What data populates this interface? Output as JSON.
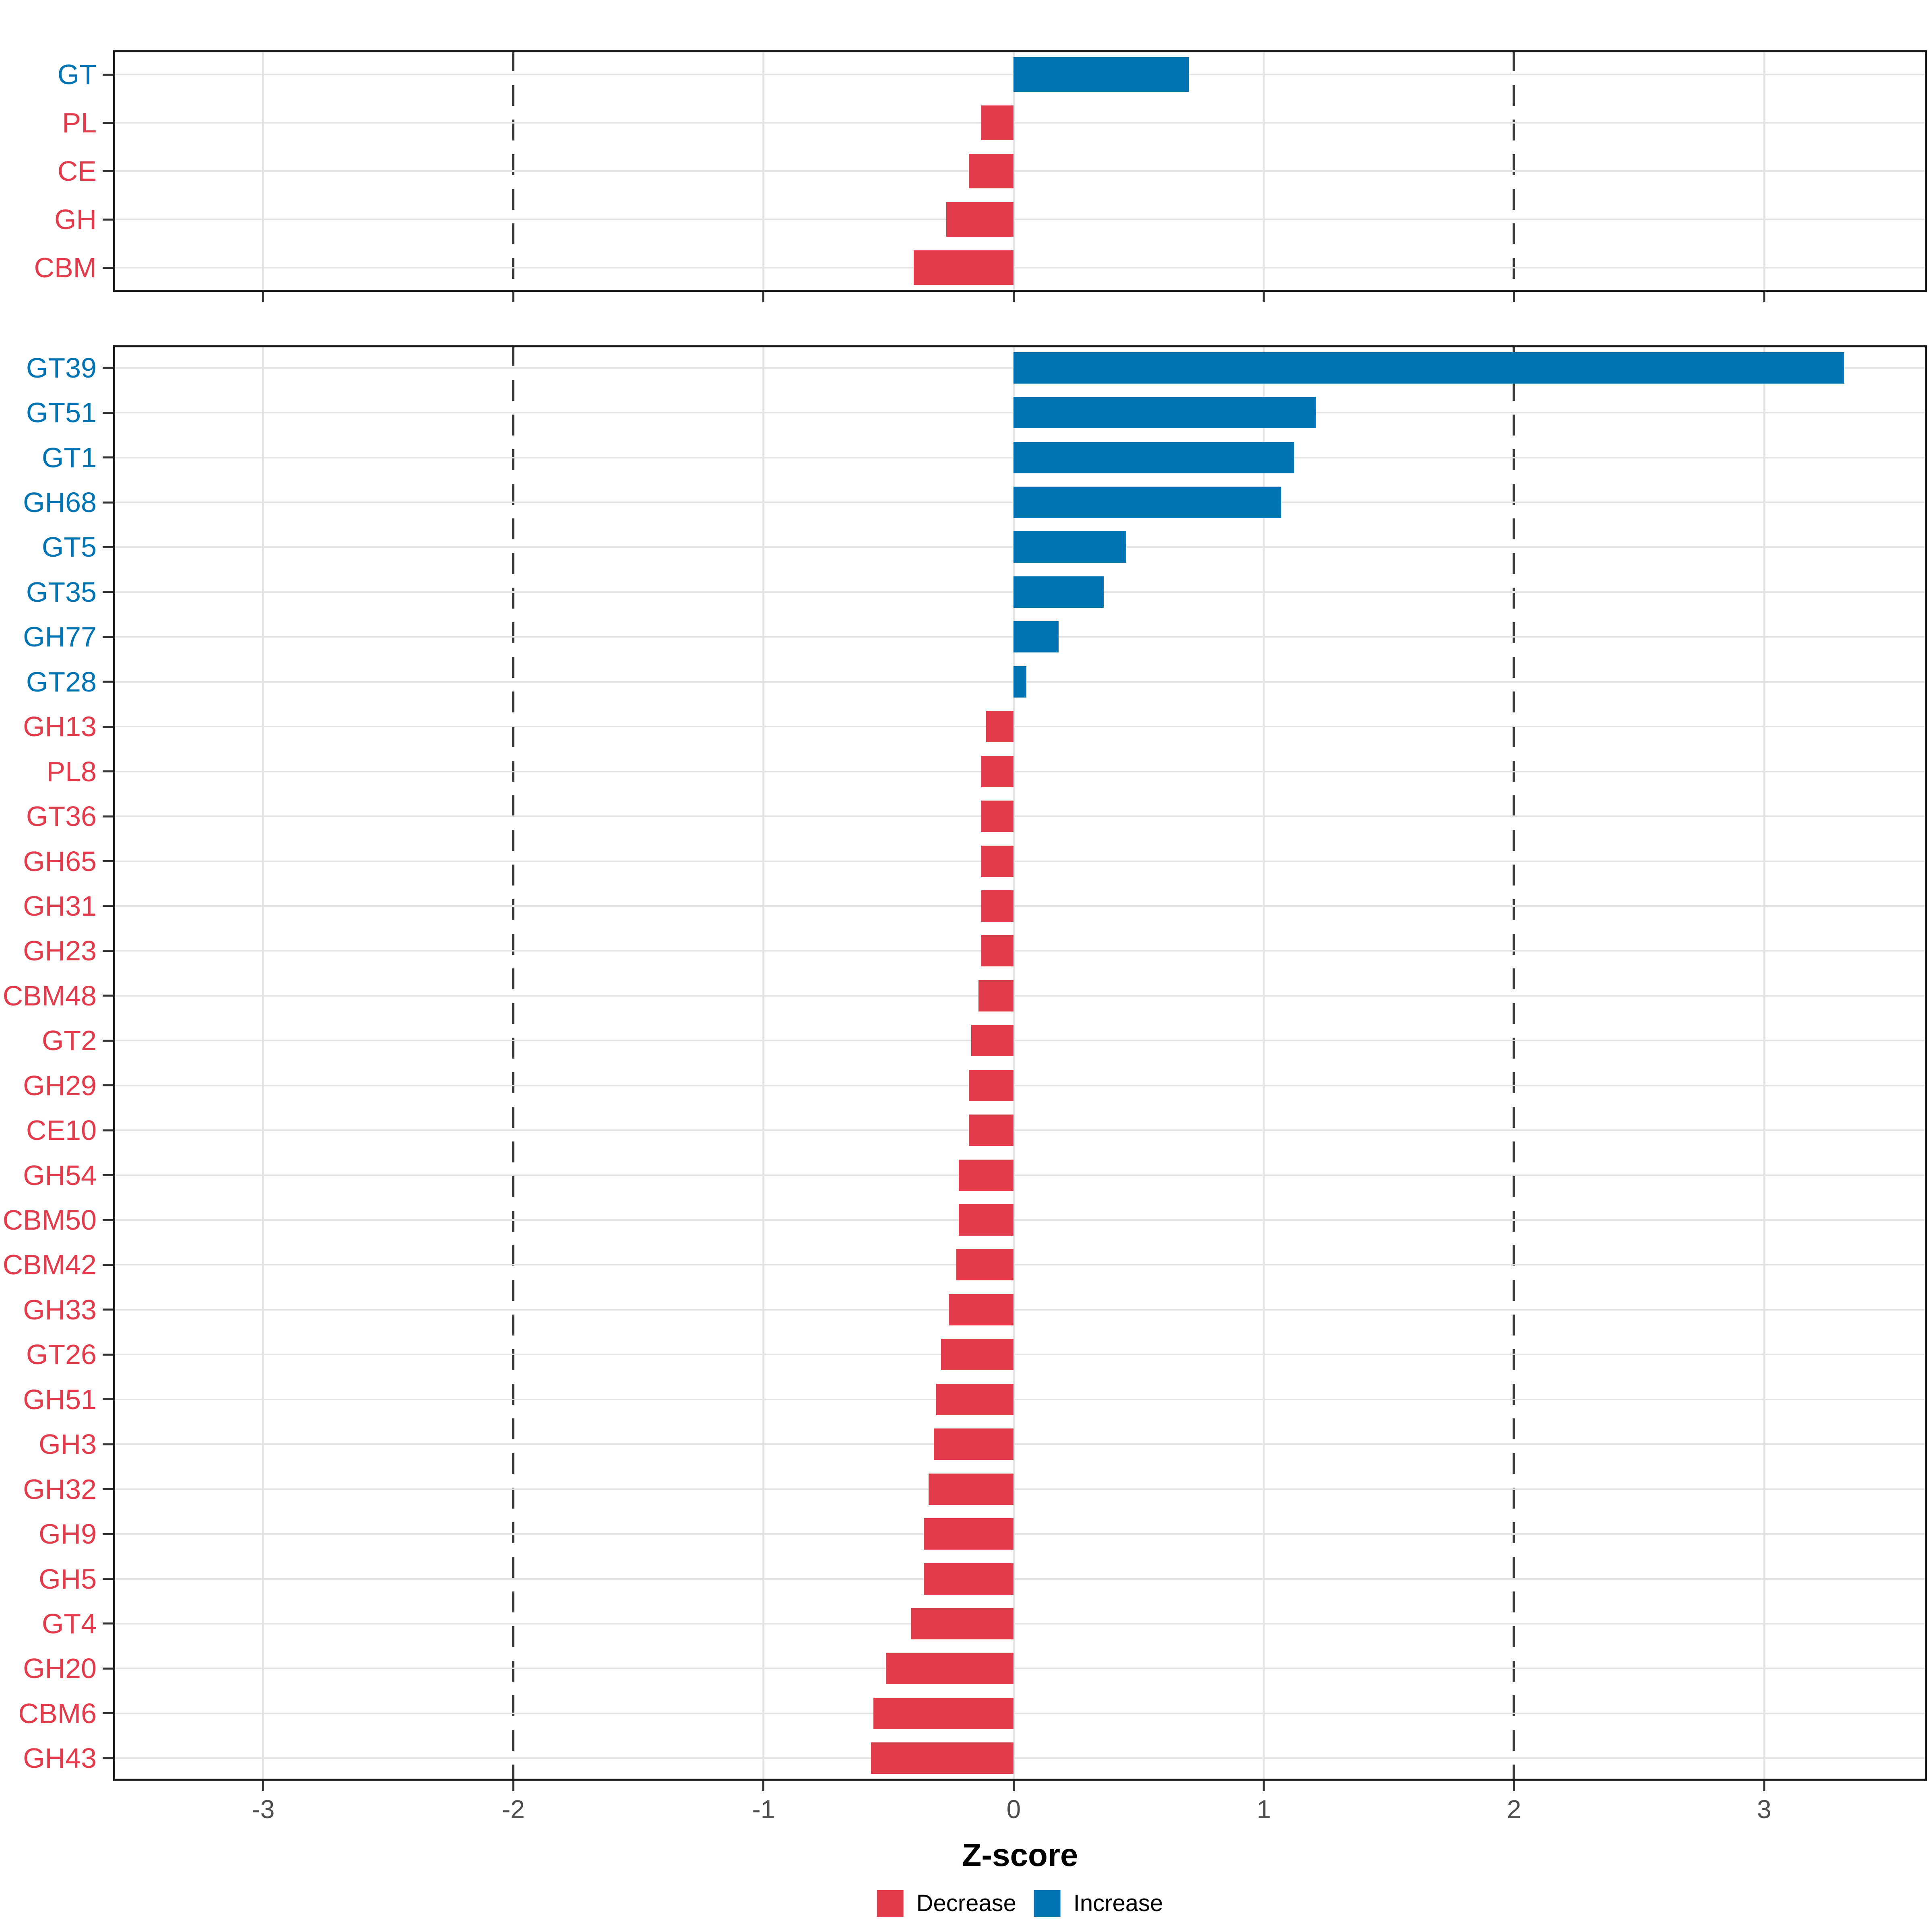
{
  "colors": {
    "increase": "#0074B3",
    "decrease": "#E23B4C",
    "grid": "#E3E3E3",
    "dashed_line": "#3B3B3B",
    "axis_text": "#4D4D4D",
    "tick": "#333333",
    "border": "#1A1A1A",
    "background": "#FFFFFF"
  },
  "axis": {
    "label": "Z-score",
    "ticks": [
      -3,
      -2,
      -1,
      0,
      1,
      2,
      3
    ],
    "tick_labels": [
      "-3",
      "-2",
      "-1",
      "0",
      "1",
      "2",
      "3"
    ],
    "xlim": [
      -3.6,
      3.65
    ],
    "dashed_at": [
      -2,
      2
    ],
    "grid": "on"
  },
  "legend": {
    "position": "bottom",
    "items": [
      {
        "key": "decrease",
        "label": "Decrease"
      },
      {
        "key": "increase",
        "label": "Increase"
      }
    ]
  },
  "chart_data": [
    {
      "type": "bar",
      "panel": "summary",
      "orientation": "horizontal",
      "title": "",
      "xlabel": "Z-score",
      "ylabel": "",
      "xlim": [
        -3.6,
        3.65
      ],
      "categories": [
        "GT",
        "PL",
        "CE",
        "GH",
        "CBM"
      ],
      "values": [
        0.7,
        -0.13,
        -0.18,
        -0.27,
        -0.4
      ],
      "directions": [
        "increase",
        "decrease",
        "decrease",
        "decrease",
        "decrease"
      ]
    },
    {
      "type": "bar",
      "panel": "families",
      "orientation": "horizontal",
      "title": "",
      "xlabel": "Z-score",
      "ylabel": "",
      "xlim": [
        -3.6,
        3.65
      ],
      "categories": [
        "GT39",
        "GT51",
        "GT1",
        "GH68",
        "GT5",
        "GT35",
        "GH77",
        "GT28",
        "GH13",
        "PL8",
        "GT36",
        "GH65",
        "GH31",
        "GH23",
        "CBM48",
        "GT2",
        "GH29",
        "CE10",
        "GH54",
        "CBM50",
        "CBM42",
        "GH33",
        "GT26",
        "GH51",
        "GH3",
        "GH32",
        "GH9",
        "GH5",
        "GT4",
        "GH20",
        "CBM6",
        "GH43"
      ],
      "values": [
        3.32,
        1.21,
        1.12,
        1.07,
        0.45,
        0.36,
        0.18,
        0.05,
        -0.11,
        -0.13,
        -0.13,
        -0.13,
        -0.13,
        -0.13,
        -0.14,
        -0.17,
        -0.18,
        -0.18,
        -0.22,
        -0.22,
        -0.23,
        -0.26,
        -0.29,
        -0.31,
        -0.32,
        -0.34,
        -0.36,
        -0.36,
        -0.41,
        -0.51,
        -0.56,
        -0.57
      ],
      "directions": [
        "increase",
        "increase",
        "increase",
        "increase",
        "increase",
        "increase",
        "increase",
        "increase",
        "decrease",
        "decrease",
        "decrease",
        "decrease",
        "decrease",
        "decrease",
        "decrease",
        "decrease",
        "decrease",
        "decrease",
        "decrease",
        "decrease",
        "decrease",
        "decrease",
        "decrease",
        "decrease",
        "decrease",
        "decrease",
        "decrease",
        "decrease",
        "decrease",
        "decrease",
        "decrease",
        "decrease"
      ]
    }
  ]
}
